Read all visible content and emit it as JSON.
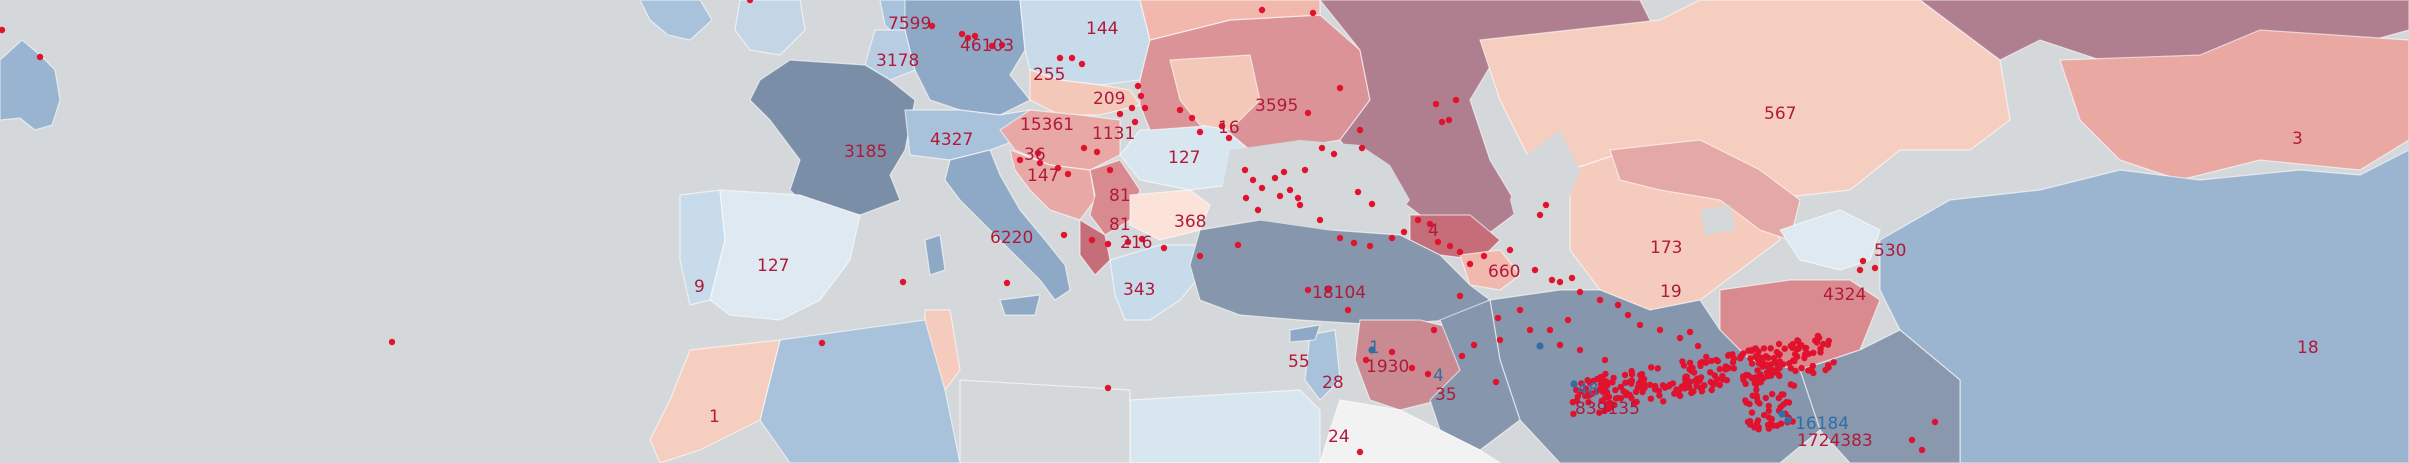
{
  "map": {
    "labels": [
      {
        "id": "l1",
        "text": "7599",
        "tone": "red"
      },
      {
        "id": "l2",
        "text": "46103",
        "tone": "red"
      },
      {
        "id": "l3",
        "text": "144",
        "tone": "red"
      },
      {
        "id": "l4",
        "text": "3178",
        "tone": "red"
      },
      {
        "id": "l5",
        "text": "255",
        "tone": "red"
      },
      {
        "id": "l6",
        "text": "209",
        "tone": "red"
      },
      {
        "id": "l7",
        "text": "3595",
        "tone": "red"
      },
      {
        "id": "l8",
        "text": "567",
        "tone": "red"
      },
      {
        "id": "l9",
        "text": "3",
        "tone": "red"
      },
      {
        "id": "l10",
        "text": "15361",
        "tone": "red"
      },
      {
        "id": "l11",
        "text": "1131",
        "tone": "red"
      },
      {
        "id": "l12",
        "text": "16",
        "tone": "red"
      },
      {
        "id": "l13",
        "text": "4327",
        "tone": "red"
      },
      {
        "id": "l14",
        "text": "3185",
        "tone": "red"
      },
      {
        "id": "l15",
        "text": "36",
        "tone": "red"
      },
      {
        "id": "l16",
        "text": "127",
        "tone": "red"
      },
      {
        "id": "l17",
        "text": "147",
        "tone": "red"
      },
      {
        "id": "l18",
        "text": "81",
        "tone": "red"
      },
      {
        "id": "l19",
        "text": "81",
        "tone": "red"
      },
      {
        "id": "l20",
        "text": "368",
        "tone": "red"
      },
      {
        "id": "l21",
        "text": "6220",
        "tone": "red"
      },
      {
        "id": "l22",
        "text": "216",
        "tone": "red"
      },
      {
        "id": "l23",
        "text": "4",
        "tone": "red"
      },
      {
        "id": "l24",
        "text": "127",
        "tone": "red"
      },
      {
        "id": "l25",
        "text": "173",
        "tone": "red"
      },
      {
        "id": "l26",
        "text": "530",
        "tone": "red"
      },
      {
        "id": "l27",
        "text": "9",
        "tone": "red"
      },
      {
        "id": "l28",
        "text": "343",
        "tone": "red"
      },
      {
        "id": "l29",
        "text": "18104",
        "tone": "red"
      },
      {
        "id": "l30",
        "text": "660",
        "tone": "red"
      },
      {
        "id": "l31",
        "text": "19",
        "tone": "red"
      },
      {
        "id": "l32",
        "text": "4324",
        "tone": "red"
      },
      {
        "id": "l33",
        "text": "1",
        "tone": "blue"
      },
      {
        "id": "l34",
        "text": "1930",
        "tone": "red"
      },
      {
        "id": "l35",
        "text": "4",
        "tone": "blue"
      },
      {
        "id": "l36",
        "text": "18",
        "tone": "red"
      },
      {
        "id": "l37",
        "text": "55",
        "tone": "red"
      },
      {
        "id": "l38",
        "text": "28",
        "tone": "red"
      },
      {
        "id": "l39",
        "text": "35",
        "tone": "red"
      },
      {
        "id": "l40",
        "text": "48",
        "tone": "blue"
      },
      {
        "id": "l41",
        "text": "839135",
        "tone": "red"
      },
      {
        "id": "l42",
        "text": "16184",
        "tone": "blue"
      },
      {
        "id": "l43",
        "text": "1",
        "tone": "red"
      },
      {
        "id": "l44",
        "text": "24",
        "tone": "red"
      },
      {
        "id": "l45",
        "text": "1724383",
        "tone": "red"
      }
    ],
    "colors": {
      "ocean": "#d5d8da",
      "marker_red": "#e0122e",
      "marker_blue": "#2f6fa8",
      "label_red": "#b01a3a",
      "label_blue": "#2f6fa8"
    }
  }
}
